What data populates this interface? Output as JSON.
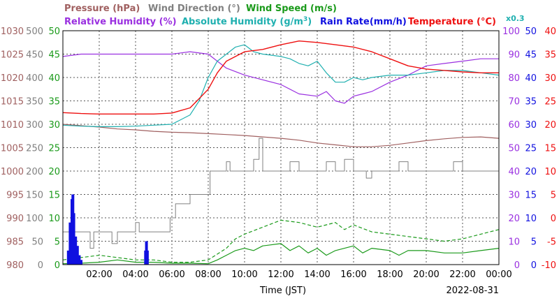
{
  "chart_data": {
    "type": "line",
    "date": "2022-08-31",
    "xlabel": "Time (JST)",
    "x_range_hours": [
      0,
      24
    ],
    "x_tick_labels": [
      "02:00",
      "04:00",
      "06:00",
      "08:00",
      "10:00",
      "12:00",
      "14:00",
      "16:00",
      "18:00",
      "20:00",
      "22:00",
      "00:00"
    ],
    "x_tick_hours": [
      2,
      4,
      6,
      8,
      10,
      12,
      14,
      16,
      18,
      20,
      22,
      24
    ],
    "grid": true,
    "titles": {
      "pressure": "Pressure (hPa)",
      "wind_direction": "Wind Direction (°)",
      "wind_speed": "Wind Speed (m/s)",
      "relative_humidity": "Relative Humidity (%)",
      "absolute_humidity": "Absolute Humidity (g/m",
      "absolute_humidity_sup": "3",
      "absolute_humidity_close": ")",
      "rain_rate": "Rain Rate(mm/h)",
      "temperature": "Temperature (°C)",
      "scale_note": "x0.3"
    },
    "axes": {
      "pressure": {
        "range": [
          980,
          1030
        ],
        "ticks": [
          "1030",
          "1025",
          "1020",
          "1015",
          "1010",
          "1005",
          "1000",
          "995",
          "990",
          "985",
          "980"
        ]
      },
      "wind_direction": {
        "range": [
          0,
          500
        ],
        "ticks": [
          "500",
          "450",
          "400",
          "350",
          "300",
          "250",
          "200",
          "150",
          "100",
          "50",
          "0"
        ]
      },
      "wind_speed": {
        "range": [
          0,
          50
        ],
        "ticks": [
          "50",
          "45",
          "40",
          "35",
          "30",
          "25",
          "20",
          "15",
          "10",
          "5",
          "0"
        ]
      },
      "relative_humidity": {
        "range": [
          0,
          100
        ],
        "ticks": [
          "100",
          "90",
          "80",
          "70",
          "60",
          "50",
          "40",
          "30",
          "20",
          "10",
          "0"
        ]
      },
      "rain_rate": {
        "range": [
          0,
          50
        ],
        "ticks": [
          "50",
          "45",
          "40",
          "35",
          "30",
          "25",
          "20",
          "15",
          "10",
          "5",
          "0"
        ]
      },
      "temperature": {
        "range": [
          -10,
          40
        ],
        "ticks": [
          "40",
          "35",
          "30",
          "25",
          "20",
          "15",
          "10",
          "5",
          "0",
          "-5",
          "-10"
        ]
      }
    },
    "colors": {
      "pressure": "#a06060",
      "wind_direction": "#808080",
      "wind_speed": "#1a9a1a",
      "relative_humidity": "#9a30e0",
      "absolute_humidity": "#20b0b0",
      "rain_rate": "#1010e0",
      "temperature": "#ee1010"
    },
    "series": [
      {
        "name": "Pressure (hPa)",
        "axis": "pressure",
        "points": [
          [
            0,
            1010.0
          ],
          [
            1,
            1009.7
          ],
          [
            2,
            1009.4
          ],
          [
            3,
            1009.0
          ],
          [
            4,
            1008.8
          ],
          [
            5,
            1008.5
          ],
          [
            6,
            1008.3
          ],
          [
            7,
            1008.2
          ],
          [
            8,
            1008.0
          ],
          [
            9,
            1007.8
          ],
          [
            10,
            1007.6
          ],
          [
            11,
            1007.3
          ],
          [
            12,
            1007.0
          ],
          [
            13,
            1006.6
          ],
          [
            14,
            1006.0
          ],
          [
            15,
            1005.6
          ],
          [
            16,
            1005.2
          ],
          [
            17,
            1005.2
          ],
          [
            18,
            1005.5
          ],
          [
            19,
            1006.0
          ],
          [
            20,
            1006.5
          ],
          [
            21,
            1006.9
          ],
          [
            22,
            1007.2
          ],
          [
            23,
            1007.3
          ],
          [
            24,
            1007.0
          ]
        ]
      },
      {
        "name": "Wind Direction (°)",
        "axis": "wind_direction",
        "points": [
          [
            0,
            70
          ],
          [
            1,
            70
          ],
          [
            1.3,
            70
          ],
          [
            1.5,
            35
          ],
          [
            1.7,
            70
          ],
          [
            2.5,
            70
          ],
          [
            2.7,
            45
          ],
          [
            3,
            70
          ],
          [
            3.8,
            70
          ],
          [
            4,
            90
          ],
          [
            4.2,
            70
          ],
          [
            5.6,
            70
          ],
          [
            5.9,
            100
          ],
          [
            6.2,
            130
          ],
          [
            6.6,
            130
          ],
          [
            7,
            150
          ],
          [
            7.5,
            150
          ],
          [
            8,
            150
          ],
          [
            8.1,
            200
          ],
          [
            8.5,
            200
          ],
          [
            9,
            220
          ],
          [
            9.2,
            200
          ],
          [
            9.5,
            200
          ],
          [
            10.3,
            200
          ],
          [
            10.5,
            225
          ],
          [
            10.8,
            270
          ],
          [
            11,
            200
          ],
          [
            12,
            200
          ],
          [
            12.5,
            220
          ],
          [
            13,
            200
          ],
          [
            14,
            200
          ],
          [
            14.5,
            220
          ],
          [
            15,
            200
          ],
          [
            15.5,
            225
          ],
          [
            16,
            200
          ],
          [
            16.5,
            200
          ],
          [
            16.7,
            185
          ],
          [
            17,
            200
          ],
          [
            18,
            200
          ],
          [
            18.5,
            220
          ],
          [
            19,
            200
          ],
          [
            20,
            200
          ],
          [
            21,
            200
          ],
          [
            21.5,
            220
          ],
          [
            22,
            200
          ],
          [
            23.5,
            200
          ],
          [
            24,
            200
          ]
        ]
      },
      {
        "name": "Wind Speed (m/s)",
        "axis": "wind_speed",
        "points": [
          [
            0,
            0.2
          ],
          [
            1,
            0.3
          ],
          [
            2,
            0.5
          ],
          [
            3,
            1.0
          ],
          [
            4,
            0.5
          ],
          [
            5,
            0.5
          ],
          [
            6,
            0.3
          ],
          [
            7,
            0.3
          ],
          [
            8,
            0.2
          ],
          [
            8.5,
            1.0
          ],
          [
            9,
            2.0
          ],
          [
            9.5,
            3.0
          ],
          [
            10,
            3.5
          ],
          [
            10.5,
            3.0
          ],
          [
            11,
            4.0
          ],
          [
            12,
            4.5
          ],
          [
            12.5,
            3.0
          ],
          [
            13,
            4.0
          ],
          [
            13.5,
            2.5
          ],
          [
            14,
            3.5
          ],
          [
            14.5,
            2.0
          ],
          [
            15,
            3.0
          ],
          [
            16,
            4.0
          ],
          [
            16.5,
            2.5
          ],
          [
            17,
            3.5
          ],
          [
            18,
            3.0
          ],
          [
            18.5,
            2.0
          ],
          [
            19,
            3.0
          ],
          [
            20,
            3.0
          ],
          [
            21,
            2.5
          ],
          [
            22,
            2.5
          ],
          [
            23,
            3.0
          ],
          [
            24,
            3.5
          ]
        ]
      },
      {
        "name": "Wind Speed gust (m/s)",
        "axis": "wind_speed",
        "points": [
          [
            0,
            1.0
          ],
          [
            1,
            1.5
          ],
          [
            2,
            2.0
          ],
          [
            3,
            1.5
          ],
          [
            4,
            1.0
          ],
          [
            5,
            1.0
          ],
          [
            6,
            0.5
          ],
          [
            7,
            0.5
          ],
          [
            8,
            1.0
          ],
          [
            9,
            3.5
          ],
          [
            9.5,
            5.5
          ],
          [
            10,
            6.5
          ],
          [
            11,
            8.0
          ],
          [
            12,
            9.5
          ],
          [
            13,
            9.0
          ],
          [
            14,
            8.0
          ],
          [
            15,
            9.0
          ],
          [
            15.5,
            7.5
          ],
          [
            16,
            8.5
          ],
          [
            17,
            7.0
          ],
          [
            18,
            6.5
          ],
          [
            19,
            6.0
          ],
          [
            20,
            5.5
          ],
          [
            21,
            5.0
          ],
          [
            22,
            5.5
          ],
          [
            23,
            6.5
          ],
          [
            24,
            7.5
          ]
        ]
      },
      {
        "name": "Relative Humidity (%)",
        "axis": "relative_humidity",
        "points": [
          [
            0,
            89
          ],
          [
            1,
            90
          ],
          [
            2,
            90
          ],
          [
            3,
            90
          ],
          [
            4,
            90
          ],
          [
            5,
            90
          ],
          [
            6,
            90
          ],
          [
            7,
            91
          ],
          [
            8,
            90
          ],
          [
            8.5,
            87
          ],
          [
            9,
            84
          ],
          [
            10,
            81
          ],
          [
            11,
            79
          ],
          [
            12,
            77
          ],
          [
            13,
            73
          ],
          [
            14,
            72
          ],
          [
            14.5,
            74
          ],
          [
            15,
            70
          ],
          [
            15.5,
            69
          ],
          [
            16,
            72
          ],
          [
            16.5,
            73
          ],
          [
            17,
            74
          ],
          [
            18,
            78
          ],
          [
            19,
            81
          ],
          [
            20,
            85
          ],
          [
            21,
            86
          ],
          [
            22,
            87
          ],
          [
            23,
            88
          ],
          [
            24,
            88
          ]
        ]
      },
      {
        "name": "Absolute Humidity (g/m³)",
        "axis": "temperature",
        "points": [
          [
            0,
            19.8
          ],
          [
            1,
            19.6
          ],
          [
            2,
            19.5
          ],
          [
            3,
            19.5
          ],
          [
            4,
            19.6
          ],
          [
            5,
            19.8
          ],
          [
            6,
            20.0
          ],
          [
            7,
            22.0
          ],
          [
            7.5,
            25.0
          ],
          [
            8,
            30.0
          ],
          [
            8.5,
            33.5
          ],
          [
            9,
            35.0
          ],
          [
            9.5,
            36.5
          ],
          [
            10,
            37.0
          ],
          [
            10.5,
            35.5
          ],
          [
            11,
            35.0
          ],
          [
            12,
            34.5
          ],
          [
            12.5,
            34.0
          ],
          [
            13,
            33.0
          ],
          [
            13.5,
            32.5
          ],
          [
            14,
            33.5
          ],
          [
            14.5,
            31.0
          ],
          [
            15,
            29.0
          ],
          [
            15.5,
            29.0
          ],
          [
            16,
            30.0
          ],
          [
            16.5,
            29.5
          ],
          [
            17,
            30.0
          ],
          [
            18,
            30.5
          ],
          [
            19,
            30.5
          ],
          [
            20,
            31.0
          ],
          [
            21,
            31.5
          ],
          [
            22,
            31.5
          ],
          [
            23,
            31.0
          ],
          [
            24,
            30.5
          ]
        ]
      },
      {
        "name": "Rain Rate(mm/h)",
        "axis": "rain_rate",
        "bars": [
          [
            0.3,
            3
          ],
          [
            0.4,
            9
          ],
          [
            0.5,
            14
          ],
          [
            0.55,
            15
          ],
          [
            0.6,
            11
          ],
          [
            0.7,
            6
          ],
          [
            0.8,
            4
          ],
          [
            0.9,
            2
          ],
          [
            1.0,
            1
          ],
          [
            4.55,
            3
          ],
          [
            4.6,
            5
          ],
          [
            4.65,
            3
          ]
        ]
      },
      {
        "name": "Temperature (°C)",
        "axis": "temperature",
        "points": [
          [
            0,
            22.5
          ],
          [
            1,
            22.3
          ],
          [
            2,
            22.2
          ],
          [
            3,
            22.2
          ],
          [
            4,
            22.2
          ],
          [
            5,
            22.2
          ],
          [
            6,
            22.4
          ],
          [
            7,
            23.5
          ],
          [
            7.5,
            25.5
          ],
          [
            8,
            27.5
          ],
          [
            8.5,
            31.0
          ],
          [
            9,
            33.5
          ],
          [
            10,
            35.5
          ],
          [
            11,
            36.0
          ],
          [
            12,
            37.0
          ],
          [
            13,
            37.8
          ],
          [
            14,
            37.5
          ],
          [
            15,
            37.0
          ],
          [
            16,
            36.5
          ],
          [
            17,
            35.5
          ],
          [
            18,
            34.0
          ],
          [
            19,
            32.5
          ],
          [
            20,
            31.8
          ],
          [
            21,
            31.5
          ],
          [
            22,
            31.2
          ],
          [
            23,
            31.0
          ],
          [
            24,
            31.0
          ]
        ]
      }
    ]
  }
}
